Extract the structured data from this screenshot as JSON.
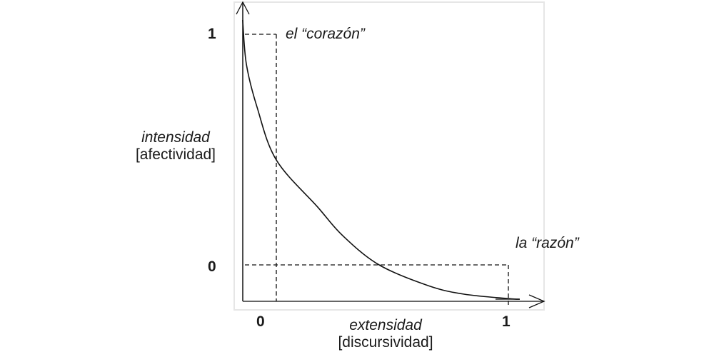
{
  "diagram": {
    "y_axis": {
      "title": "intensidad",
      "subtitle": "[afectividad]",
      "tick_top": "1",
      "tick_bottom": "0"
    },
    "x_axis": {
      "title": "extensidad",
      "subtitle": "[discursividad]",
      "tick_left": "0",
      "tick_right": "1"
    },
    "annotations": {
      "top_point": "el “corazón”",
      "bottom_point": "la “razón”"
    },
    "colors": {
      "line": "#111111",
      "frame": "#e6e6e6",
      "text": "#1a1a1a"
    }
  },
  "chart_data": {
    "type": "line",
    "title": "",
    "xlabel": "extensidad [discursividad]",
    "ylabel": "intensidad [afectividad]",
    "x_ticks": [
      "0",
      "1"
    ],
    "y_ticks": [
      "0",
      "1"
    ],
    "xlim": [
      -0.15,
      1.15
    ],
    "ylim": [
      -0.15,
      1.15
    ],
    "grid": false,
    "series": [
      {
        "name": "curve",
        "x": [
          -0.145,
          -0.129,
          -0.083,
          0.0,
          0.178,
          0.286,
          0.443,
          0.655,
          0.809,
          1.0,
          1.049
        ],
        "y": [
          1.062,
          0.87,
          0.684,
          0.455,
          0.251,
          0.127,
          0.0,
          -0.09,
          -0.127,
          -0.146,
          -0.149
        ]
      }
    ],
    "reference_points": [
      {
        "label": "el “corazón”",
        "x": 0,
        "y": 1
      },
      {
        "label": "la “razón”",
        "x": 1,
        "y": 0
      }
    ]
  }
}
